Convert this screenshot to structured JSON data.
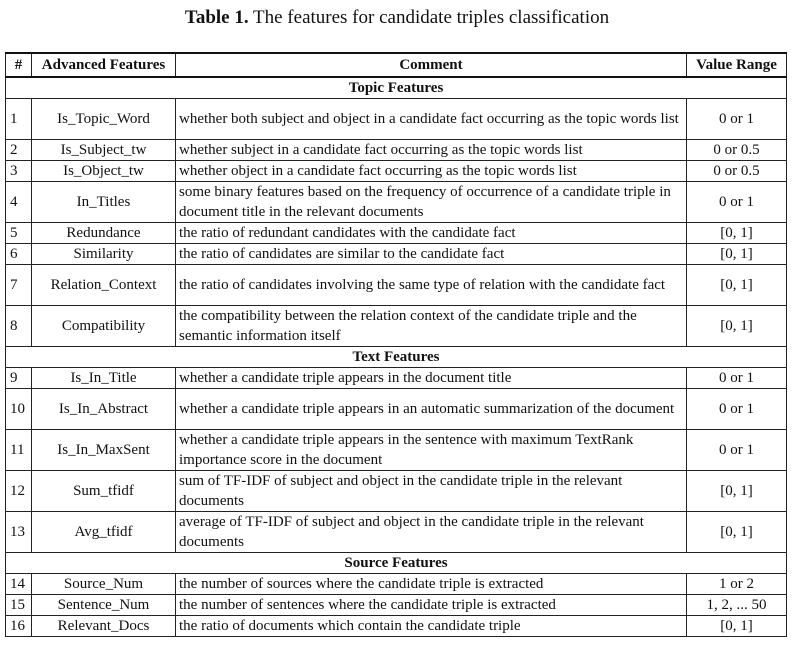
{
  "caption": {
    "label": "Table 1.",
    "text": " The features for candidate triples classification"
  },
  "headers": [
    "#",
    "Advanced Features",
    "Comment",
    "Value Range"
  ],
  "sections": [
    {
      "title": "Topic Features",
      "rows": [
        {
          "num": "1",
          "feature": "Is_Topic_Word",
          "comment": "whether both subject and object in a candidate fact occurring as the topic words list",
          "range": "0 or 1"
        },
        {
          "num": "2",
          "feature": "Is_Subject_tw",
          "comment": "whether subject in a candidate fact occurring as the topic words list",
          "range": "0 or 0.5"
        },
        {
          "num": "3",
          "feature": "Is_Object_tw",
          "comment": "whether object in a candidate fact occurring as the topic words list",
          "range": "0 or 0.5"
        },
        {
          "num": "4",
          "feature": "In_Titles",
          "comment": "some binary features based on the frequency of occurrence of a candidate triple in document title in the relevant documents",
          "range": "0 or 1"
        },
        {
          "num": "5",
          "feature": "Redundance",
          "comment": "the ratio of redundant candidates with the candidate fact",
          "range": "[0, 1]"
        },
        {
          "num": "6",
          "feature": "Similarity",
          "comment": "the ratio of candidates are similar to the candidate fact",
          "range": "[0, 1]"
        },
        {
          "num": "7",
          "feature": "Relation_Context",
          "comment": "the ratio of candidates involving the same type of relation with the candidate fact",
          "range": "[0, 1]"
        },
        {
          "num": "8",
          "feature": "Compatibility",
          "comment": "the compatibility between the relation context of the candidate triple and the semantic information itself",
          "range": "[0, 1]"
        }
      ]
    },
    {
      "title": "Text Features",
      "rows": [
        {
          "num": "9",
          "feature": "Is_In_Title",
          "comment": "whether a candidate triple appears in the document title",
          "range": "0 or 1"
        },
        {
          "num": "10",
          "feature": "Is_In_Abstract",
          "comment": "whether a candidate triple appears in an automatic summarization of the document",
          "range": "0 or 1"
        },
        {
          "num": "11",
          "feature": "Is_In_MaxSent",
          "comment": "whether a candidate triple appears in the sentence with maximum TextRank importance score in the document",
          "range": "0 or 1"
        },
        {
          "num": "12",
          "feature": "Sum_tfidf",
          "comment": "sum of TF-IDF of subject and object in the candidate triple in the relevant documents",
          "range": "[0, 1]"
        },
        {
          "num": "13",
          "feature": "Avg_tfidf",
          "comment": "average of TF-IDF of subject and object in the candidate triple in the relevant documents",
          "range": "[0, 1]"
        }
      ]
    },
    {
      "title": "Source Features",
      "rows": [
        {
          "num": "14",
          "feature": "Source_Num",
          "comment": "the number of sources where the candidate triple is extracted",
          "range": "1 or 2"
        },
        {
          "num": "15",
          "feature": "Sentence_Num",
          "comment": "the number of sentences where the candidate triple is extracted",
          "range": "1, 2, ... 50"
        },
        {
          "num": "16",
          "feature": "Relevant_Docs",
          "comment": "the ratio of documents which contain the candidate triple",
          "range": "[0, 1]"
        }
      ]
    }
  ]
}
